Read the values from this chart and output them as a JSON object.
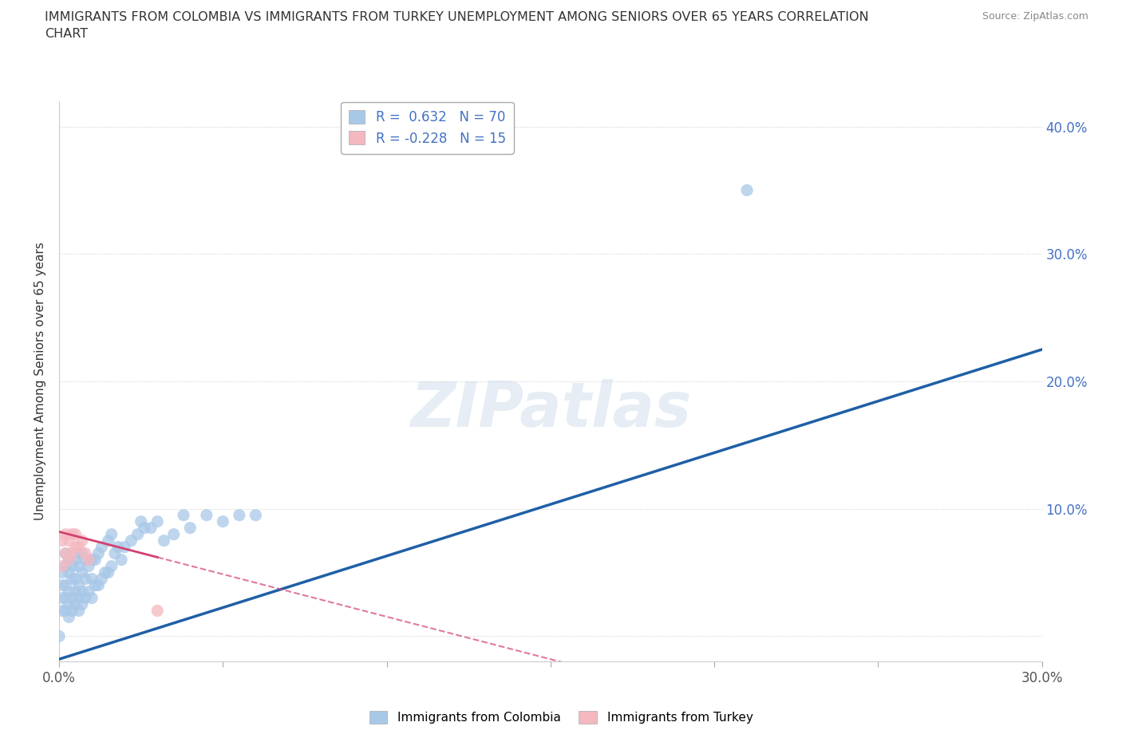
{
  "title": "IMMIGRANTS FROM COLOMBIA VS IMMIGRANTS FROM TURKEY UNEMPLOYMENT AMONG SENIORS OVER 65 YEARS CORRELATION\nCHART",
  "source": "Source: ZipAtlas.com",
  "ylabel": "Unemployment Among Seniors over 65 years",
  "xlim": [
    0.0,
    0.3
  ],
  "ylim": [
    -0.02,
    0.42
  ],
  "colombia_color": "#a8c8e8",
  "turkey_color": "#f4b8c0",
  "colombia_line_color": "#1f5fa6",
  "turkey_line_color": "#d44070",
  "R_colombia": 0.632,
  "N_colombia": 70,
  "R_turkey": -0.228,
  "N_turkey": 15,
  "watermark": "ZIPatlas",
  "colombia_x": [
    0.001,
    0.001,
    0.001,
    0.001,
    0.002,
    0.002,
    0.002,
    0.002,
    0.002,
    0.003,
    0.003,
    0.003,
    0.003,
    0.003,
    0.004,
    0.004,
    0.004,
    0.004,
    0.005,
    0.005,
    0.005,
    0.005,
    0.006,
    0.006,
    0.006,
    0.006,
    0.006,
    0.007,
    0.007,
    0.007,
    0.007,
    0.008,
    0.008,
    0.008,
    0.009,
    0.009,
    0.01,
    0.01,
    0.01,
    0.011,
    0.011,
    0.012,
    0.012,
    0.013,
    0.013,
    0.014,
    0.015,
    0.015,
    0.016,
    0.016,
    0.017,
    0.018,
    0.019,
    0.02,
    0.022,
    0.024,
    0.025,
    0.026,
    0.028,
    0.03,
    0.032,
    0.035,
    0.038,
    0.04,
    0.045,
    0.05,
    0.055,
    0.06,
    0.21,
    0.0
  ],
  "colombia_y": [
    0.02,
    0.03,
    0.04,
    0.05,
    0.02,
    0.03,
    0.04,
    0.055,
    0.065,
    0.015,
    0.025,
    0.035,
    0.05,
    0.06,
    0.02,
    0.03,
    0.045,
    0.055,
    0.025,
    0.035,
    0.045,
    0.06,
    0.02,
    0.03,
    0.04,
    0.055,
    0.065,
    0.025,
    0.035,
    0.05,
    0.065,
    0.03,
    0.045,
    0.06,
    0.035,
    0.055,
    0.03,
    0.045,
    0.06,
    0.04,
    0.06,
    0.04,
    0.065,
    0.045,
    0.07,
    0.05,
    0.05,
    0.075,
    0.055,
    0.08,
    0.065,
    0.07,
    0.06,
    0.07,
    0.075,
    0.08,
    0.09,
    0.085,
    0.085,
    0.09,
    0.075,
    0.08,
    0.095,
    0.085,
    0.095,
    0.09,
    0.095,
    0.095,
    0.35,
    0.0
  ],
  "turkey_x": [
    0.001,
    0.001,
    0.002,
    0.002,
    0.003,
    0.003,
    0.004,
    0.004,
    0.005,
    0.005,
    0.006,
    0.007,
    0.008,
    0.009,
    0.03
  ],
  "turkey_y": [
    0.055,
    0.075,
    0.065,
    0.08,
    0.06,
    0.075,
    0.065,
    0.08,
    0.07,
    0.08,
    0.07,
    0.075,
    0.065,
    0.06,
    0.02
  ],
  "background_color": "#ffffff",
  "grid_color": "#d0d0d0"
}
